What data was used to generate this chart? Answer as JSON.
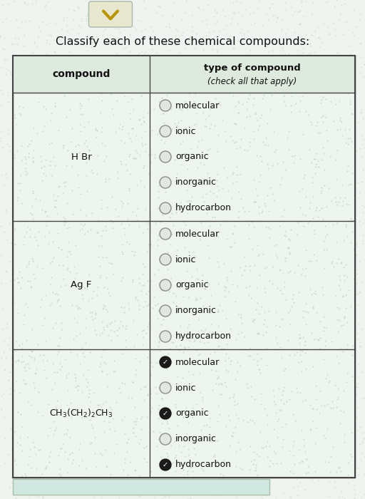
{
  "title": "Classify each of these chemical compounds:",
  "title_fontsize": 11.5,
  "background_color": "#f0f4f0",
  "table_bg": "#e8f0e8",
  "cell_bg": "#eef4ee",
  "header_bg": "#e8f0e8",
  "border_color": "#444444",
  "col1_header": "compound",
  "col2_header_line1": "type of compound",
  "col2_header_line2": "(check all that apply)",
  "options": [
    "molecular",
    "ionic",
    "organic",
    "inorganic",
    "hydrocarbon"
  ],
  "checked": [
    [
      false,
      false,
      false,
      false,
      false
    ],
    [
      false,
      false,
      false,
      false,
      false
    ],
    [
      true,
      false,
      true,
      false,
      true
    ]
  ],
  "check_color": "#1a1a1a",
  "circle_border_color": "#888888",
  "circle_fill_empty": "#e8ede8",
  "text_color": "#111111",
  "fig_width": 5.12,
  "fig_height": 7.0,
  "chevron_color": "#b8960a",
  "chevron_btn_color": "#e8e8d0",
  "bottom_btn_color": "#d0e8e0"
}
